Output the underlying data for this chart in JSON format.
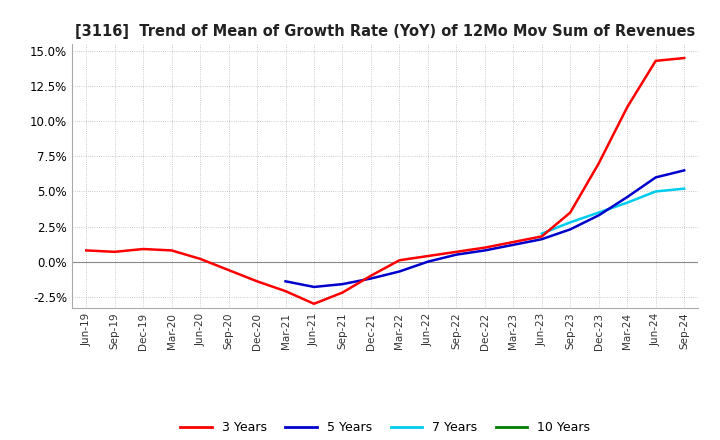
{
  "title": "[3116]  Trend of Mean of Growth Rate (YoY) of 12Mo Mov Sum of Revenues",
  "ylim": [
    -0.033,
    0.155
  ],
  "yticks": [
    -0.025,
    0.0,
    0.025,
    0.05,
    0.075,
    0.1,
    0.125,
    0.15
  ],
  "colors": {
    "3yr": "#ff0000",
    "5yr": "#0000cc",
    "7yr": "#00ccee",
    "10yr": "#008000"
  },
  "legend_labels": [
    "3 Years",
    "5 Years",
    "7 Years",
    "10 Years"
  ],
  "background_color": "#ffffff",
  "grid_color": "#bbbbbb",
  "x_dates": [
    "Jun-19",
    "Sep-19",
    "Dec-19",
    "Mar-20",
    "Jun-20",
    "Sep-20",
    "Dec-20",
    "Mar-21",
    "Jun-21",
    "Sep-21",
    "Dec-21",
    "Mar-22",
    "Jun-22",
    "Sep-22",
    "Dec-22",
    "Mar-23",
    "Jun-23",
    "Sep-23",
    "Dec-23",
    "Mar-24",
    "Jun-24",
    "Sep-24"
  ],
  "series_3yr": [
    0.008,
    0.007,
    0.009,
    0.008,
    0.002,
    -0.006,
    -0.014,
    -0.021,
    -0.03,
    -0.022,
    -0.01,
    0.001,
    0.004,
    0.007,
    0.01,
    0.014,
    0.018,
    0.035,
    0.07,
    0.11,
    0.143,
    0.145
  ],
  "series_5yr": [
    null,
    null,
    null,
    null,
    null,
    null,
    null,
    -0.014,
    -0.018,
    -0.016,
    -0.012,
    -0.007,
    0.0,
    0.005,
    0.008,
    0.012,
    0.016,
    0.023,
    0.033,
    0.046,
    0.06,
    0.065
  ],
  "series_7yr": [
    null,
    null,
    null,
    null,
    null,
    null,
    null,
    null,
    null,
    null,
    null,
    null,
    null,
    null,
    null,
    null,
    0.02,
    0.028,
    0.035,
    0.042,
    0.05,
    0.052
  ],
  "series_10yr": [
    null,
    null,
    null,
    null,
    null,
    null,
    null,
    null,
    null,
    null,
    null,
    null,
    null,
    null,
    null,
    null,
    null,
    null,
    null,
    null,
    null,
    null
  ]
}
